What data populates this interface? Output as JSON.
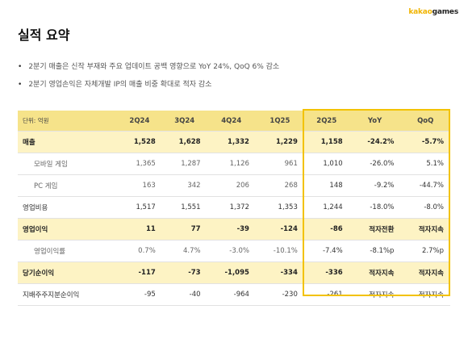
{
  "brand": {
    "kakao": "kakao",
    "games": "games"
  },
  "title": "실적 요약",
  "bullets": [
    "2분기 매출은 신작 부재와 주요 업데이트 공백 영향으로 YoY 24%, QoQ 6% 감소",
    "2분기 영업손익은 자체개발 IP의 매출 비중 확대로 적자 감소"
  ],
  "table": {
    "header": [
      "단위: 억원",
      "2Q24",
      "3Q24",
      "4Q24",
      "1Q25",
      "2Q25",
      "YoY",
      "QoQ"
    ],
    "rows": [
      {
        "type": "major",
        "cells": [
          "매출",
          "1,528",
          "1,628",
          "1,332",
          "1,229",
          "1,158",
          "-24.2%",
          "-5.7%"
        ]
      },
      {
        "type": "minor",
        "cells": [
          "모바일 게임",
          "1,365",
          "1,287",
          "1,126",
          "961",
          "1,010",
          "-26.0%",
          "5.1%"
        ]
      },
      {
        "type": "minor",
        "cells": [
          "PC 게임",
          "163",
          "342",
          "206",
          "268",
          "148",
          "-9.2%",
          "-44.7%"
        ]
      },
      {
        "type": "normal",
        "cells": [
          "영업비용",
          "1,517",
          "1,551",
          "1,372",
          "1,353",
          "1,244",
          "-18.0%",
          "-8.0%"
        ]
      },
      {
        "type": "major",
        "cells": [
          "영업이익",
          "11",
          "77",
          "-39",
          "-124",
          "-86",
          "적자전환",
          "적자지속"
        ]
      },
      {
        "type": "minor",
        "cells": [
          "영업이익률",
          "0.7%",
          "4.7%",
          "-3.0%",
          "-10.1%",
          "-7.4%",
          "-8.1%p",
          "2.7%p"
        ]
      },
      {
        "type": "major",
        "cells": [
          "당기순이익",
          "-117",
          "-73",
          "-1,095",
          "-334",
          "-336",
          "적자지속",
          "적자지속"
        ]
      },
      {
        "type": "normal",
        "cells": [
          "지배주주지분순이익",
          "-95",
          "-40",
          "-964",
          "-230",
          "-261",
          "적자지속",
          "적자지속"
        ]
      }
    ]
  },
  "colors": {
    "accent": "#f2c200",
    "header_bg": "#f6e38a",
    "major_bg": "#fdf3c4"
  }
}
